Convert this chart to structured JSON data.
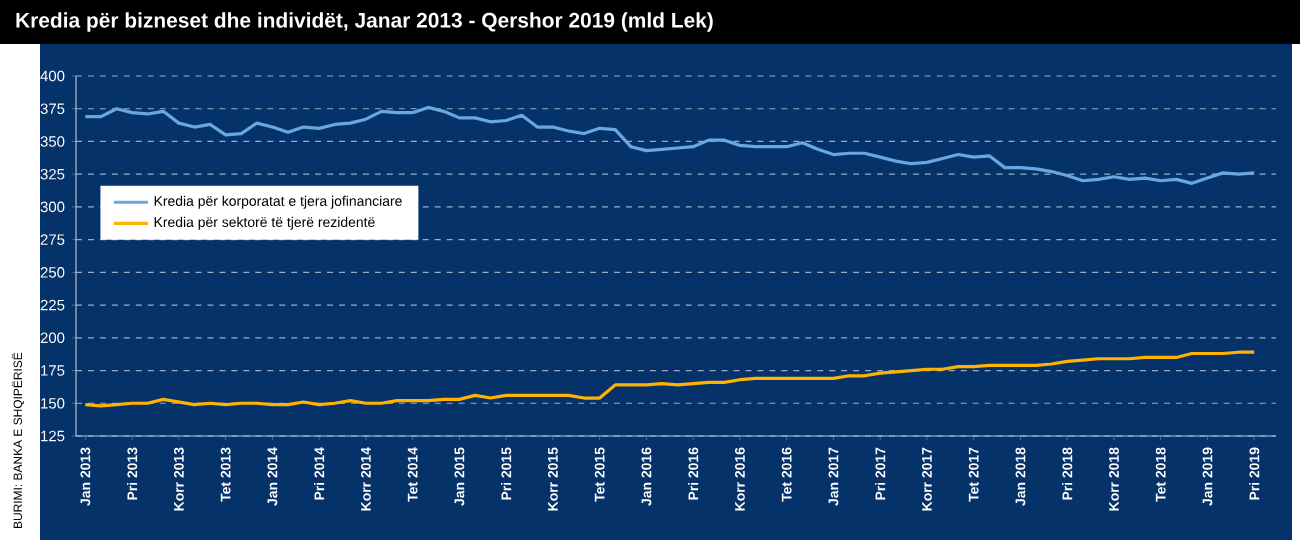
{
  "chart_data": {
    "type": "line",
    "title": "Kredia për bizneset dhe individët, Janar 2013 - Qershor 2019 (mld Lek)",
    "categories": [
      "Jan 2013",
      null,
      null,
      "Pri 2013",
      null,
      null,
      "Korr 2013",
      null,
      null,
      "Tet 2013",
      null,
      null,
      "Jan 2014",
      null,
      null,
      "Pri 2014",
      null,
      null,
      "Korr 2014",
      null,
      null,
      "Tet 2014",
      null,
      null,
      "Jan 2015",
      null,
      null,
      "Pri 2015",
      null,
      null,
      "Korr 2015",
      null,
      null,
      "Tet 2015",
      null,
      null,
      "Jan 2016",
      null,
      null,
      "Pri 2016",
      null,
      null,
      "Korr 2016",
      null,
      null,
      "Tet 2016",
      null,
      null,
      "Jan 2017",
      null,
      null,
      "Pri 2017",
      null,
      null,
      "Korr 2017",
      null,
      null,
      "Tet 2017",
      null,
      null,
      "Jan 2018",
      null,
      null,
      "Pri 2018",
      null,
      null,
      "Korr 2018",
      null,
      null,
      "Tet 2018",
      null,
      null,
      "Jan 2019",
      null,
      null,
      "Pri 2019"
    ],
    "series": [
      {
        "name": "Kredia për korporatat e tjera jofinanciare",
        "color": "#6aa6e0",
        "values": [
          369,
          369,
          375,
          372,
          371,
          373,
          364,
          361,
          363,
          355,
          356,
          364,
          361,
          357,
          361,
          360,
          363,
          364,
          367,
          373,
          372,
          372,
          376,
          373,
          368,
          368,
          365,
          366,
          370,
          361,
          361,
          358,
          356,
          360,
          359,
          346,
          343,
          344,
          345,
          346,
          351,
          351,
          347,
          346,
          346,
          346,
          349,
          344,
          340,
          341,
          341,
          338,
          335,
          333,
          334,
          337,
          340,
          338,
          339,
          330,
          330,
          329,
          327,
          324,
          320,
          321,
          323,
          321,
          322,
          320,
          321,
          318,
          322,
          326,
          325,
          326
        ]
      },
      {
        "name": "Kredia për sektorë të tjerë rezidentë",
        "color": "#ffb300",
        "values": [
          149,
          148,
          149,
          150,
          150,
          153,
          151,
          149,
          150,
          149,
          150,
          150,
          149,
          149,
          151,
          149,
          150,
          152,
          150,
          150,
          152,
          152,
          152,
          153,
          153,
          156,
          154,
          156,
          156,
          156,
          156,
          156,
          154,
          154,
          164,
          164,
          164,
          165,
          164,
          165,
          166,
          166,
          168,
          169,
          169,
          169,
          169,
          169,
          169,
          171,
          171,
          173,
          174,
          175,
          176,
          176,
          178,
          178,
          179,
          179,
          179,
          179,
          180,
          182,
          183,
          184,
          184,
          184,
          185,
          185,
          185,
          188,
          188,
          188,
          189,
          189
        ]
      }
    ],
    "ylim": [
      125,
      400
    ],
    "yticks": [
      125,
      150,
      175,
      200,
      225,
      250,
      275,
      300,
      325,
      350,
      375,
      400
    ],
    "grid": "y",
    "legend": "left",
    "annotations": [
      "BURIMI: BANKA E SHQIPËRISË"
    ]
  }
}
